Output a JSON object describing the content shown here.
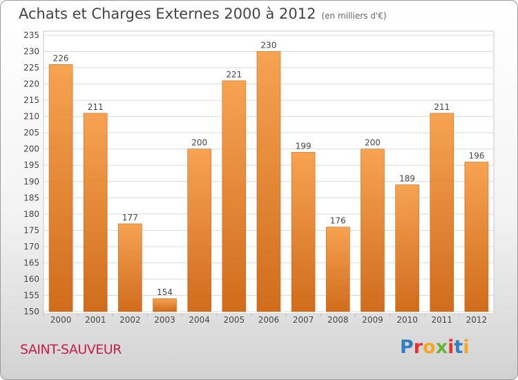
{
  "header": {
    "title": "Achats et Charges Externes 2000 à 2012",
    "unit": "(en milliers d'€)"
  },
  "footer": {
    "place": "SAINT-SAUVEUR",
    "brand_letters": [
      "P",
      "r",
      "o",
      "x",
      "i",
      "t",
      "i"
    ]
  },
  "colors": {
    "bar_top": "#f6a352",
    "bar_bottom": "#d06c1c",
    "bar_edge": "#c9661a",
    "brand": [
      "#2f7fc1",
      "#e8312f",
      "#f5a623",
      "#6ab23a",
      "#e8312f",
      "#2f7fc1",
      "#f5a623"
    ]
  },
  "chart_data": {
    "type": "bar",
    "categories": [
      "2000",
      "2001",
      "2002",
      "2003",
      "2004",
      "2005",
      "2006",
      "2007",
      "2008",
      "2009",
      "2010",
      "2011",
      "2012"
    ],
    "values": [
      226,
      211,
      177,
      154,
      200,
      221,
      230,
      199,
      176,
      200,
      189,
      211,
      196
    ],
    "ylim": [
      150,
      235
    ],
    "yticks": [
      150,
      155,
      160,
      165,
      170,
      175,
      180,
      185,
      190,
      195,
      200,
      205,
      210,
      215,
      220,
      225,
      230,
      235
    ],
    "grid": true
  }
}
